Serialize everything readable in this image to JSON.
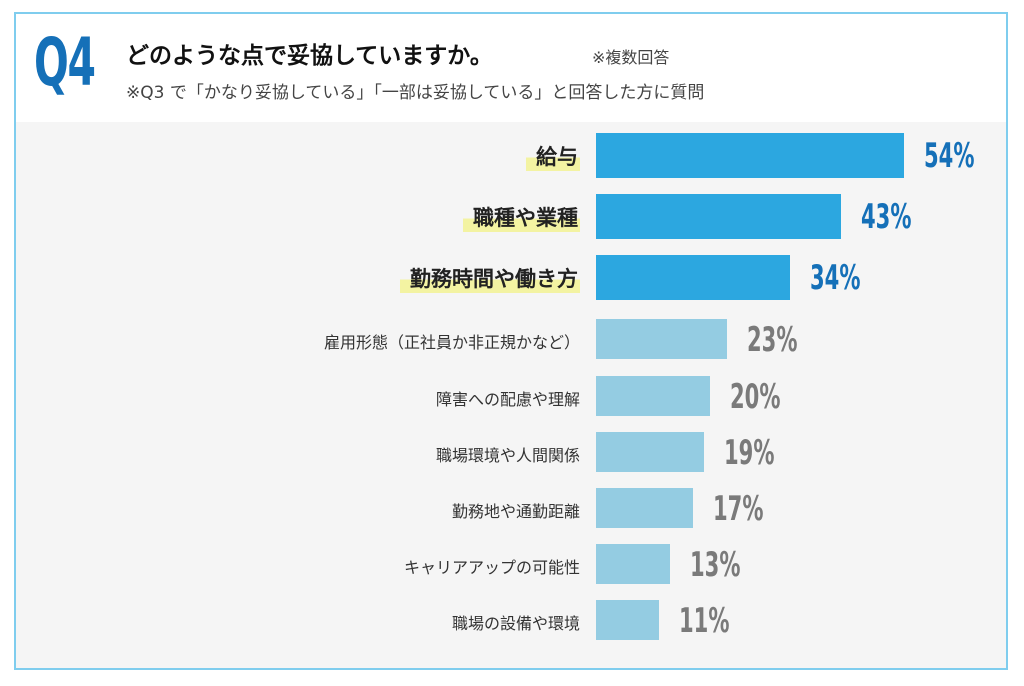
{
  "header": {
    "q_label": "Q4",
    "title": "どのような点で妥協していますか。",
    "note": "※複数回答",
    "subtitle": "※Q3 で「かなり妥協している」「一部は妥協している」と回答した方に質問"
  },
  "colors": {
    "highlight_bar": "#2ca7e0",
    "normal_bar": "#94cce2",
    "highlight_value": "#1570b8",
    "normal_value": "#7a7a7a",
    "border": "#7fcdee"
  },
  "chart_data": {
    "type": "bar",
    "orientation": "horizontal",
    "unit": "%",
    "categories": [
      "給与",
      "職種や業種",
      "勤務時間や働き方",
      "雇用形態（正社員か非正規かなど）",
      "障害への配慮や理解",
      "職場環境や人間関係",
      "勤務地や通勤距離",
      "キャリアアップの可能性",
      "職場の設備や環境"
    ],
    "values": [
      54,
      43,
      34,
      23,
      20,
      19,
      17,
      13,
      11
    ],
    "value_labels": [
      "54%",
      "43%",
      "34%",
      "23%",
      "20%",
      "19%",
      "17%",
      "13%",
      "11%"
    ],
    "highlighted": [
      true,
      true,
      true,
      false,
      false,
      false,
      false,
      false,
      false
    ]
  }
}
